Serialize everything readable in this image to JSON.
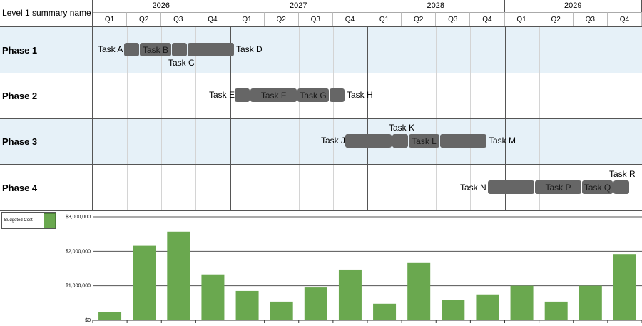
{
  "header": {
    "title": "Level 1 summary name"
  },
  "years": [
    "2026",
    "2027",
    "2028",
    "2029"
  ],
  "quarters": [
    "Q1",
    "Q2",
    "Q3",
    "Q4",
    "Q1",
    "Q2",
    "Q3",
    "Q4",
    "Q1",
    "Q2",
    "Q3",
    "Q4",
    "Q1",
    "Q2",
    "Q3",
    "Q4"
  ],
  "phases": [
    "Phase 1",
    "Phase 2",
    "Phase 3",
    "Phase 4"
  ],
  "tasks": {
    "a": "Task A",
    "b": "Task B",
    "c": "Task C",
    "d": "Task D",
    "e": "Task E",
    "f": "Task F",
    "g": "Task G",
    "h": "Task H",
    "j": "Task J",
    "k": "Task K",
    "l": "Task L",
    "m": "Task M",
    "n": "Task N",
    "p": "Task P",
    "q": "Task Q",
    "r": "Task R"
  },
  "colors": {
    "bar": "#6aa84f",
    "task": "#666666",
    "band": "#e6f1f8"
  },
  "chart_data": {
    "type": "bar",
    "categories": [
      "Q1 2026",
      "Q2 2026",
      "Q3 2026",
      "Q4 2026",
      "Q1 2027",
      "Q2 2027",
      "Q3 2027",
      "Q4 2027",
      "Q1 2028",
      "Q2 2028",
      "Q3 2028",
      "Q4 2028",
      "Q1 2029",
      "Q2 2029",
      "Q3 2029",
      "Q4 2029"
    ],
    "series": [
      {
        "name": "Budgeted Cost",
        "values": [
          240000,
          2160000,
          2570000,
          1330000,
          850000,
          540000,
          950000,
          1470000,
          480000,
          1680000,
          600000,
          750000,
          1000000,
          540000,
          1000000,
          1920000
        ]
      }
    ],
    "ylim": [
      0,
      3000000
    ],
    "yticks": [
      0,
      1000000,
      2000000,
      3000000
    ],
    "ytick_labels": [
      "$0",
      "$1,000,000",
      "$2,000,000",
      "$3,000,000"
    ],
    "grid": true
  }
}
